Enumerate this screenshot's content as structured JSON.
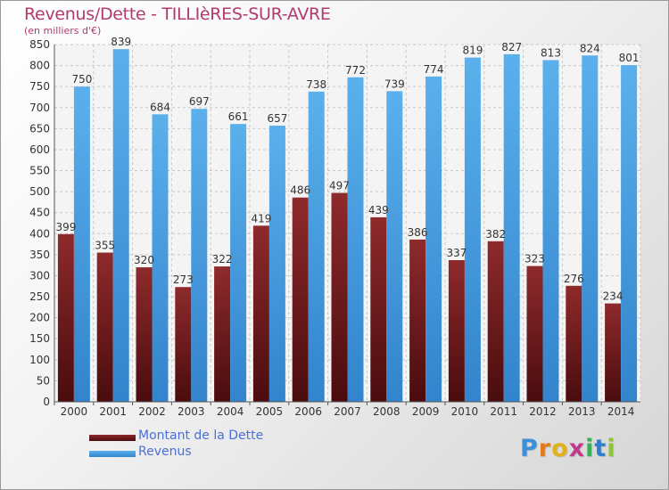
{
  "chart_data": {
    "type": "bar",
    "title": "Revenus/Dette - TILLIèRES-SUR-AVRE",
    "subtitle": "(en milliers d'€)",
    "categories": [
      "2000",
      "2001",
      "2002",
      "2003",
      "2004",
      "2005",
      "2006",
      "2007",
      "2008",
      "2009",
      "2010",
      "2011",
      "2012",
      "2013",
      "2014"
    ],
    "series": [
      {
        "name": "Montant de la Dette",
        "color": "#7a1f22",
        "values": [
          399,
          355,
          320,
          273,
          322,
          419,
          486,
          497,
          439,
          386,
          337,
          382,
          323,
          276,
          234
        ]
      },
      {
        "name": "Revenus",
        "color": "#4a9fe0",
        "values": [
          750,
          839,
          684,
          697,
          661,
          657,
          738,
          772,
          739,
          774,
          819,
          827,
          813,
          824,
          801
        ]
      }
    ],
    "ylim": [
      0,
      850
    ],
    "yticks": [
      0,
      50,
      100,
      150,
      200,
      250,
      300,
      350,
      400,
      450,
      500,
      550,
      600,
      650,
      700,
      750,
      800,
      850
    ],
    "grid": true,
    "legend_position": "bottom-left"
  },
  "logo": {
    "letters": [
      "P",
      "r",
      "o",
      "x",
      "i",
      "t",
      "i"
    ],
    "colors": [
      "#3a8fd8",
      "#e07a1f",
      "#e2b11a",
      "#c23a8e",
      "#3aaf5a",
      "#2e7fd1",
      "#8fc43a"
    ]
  }
}
